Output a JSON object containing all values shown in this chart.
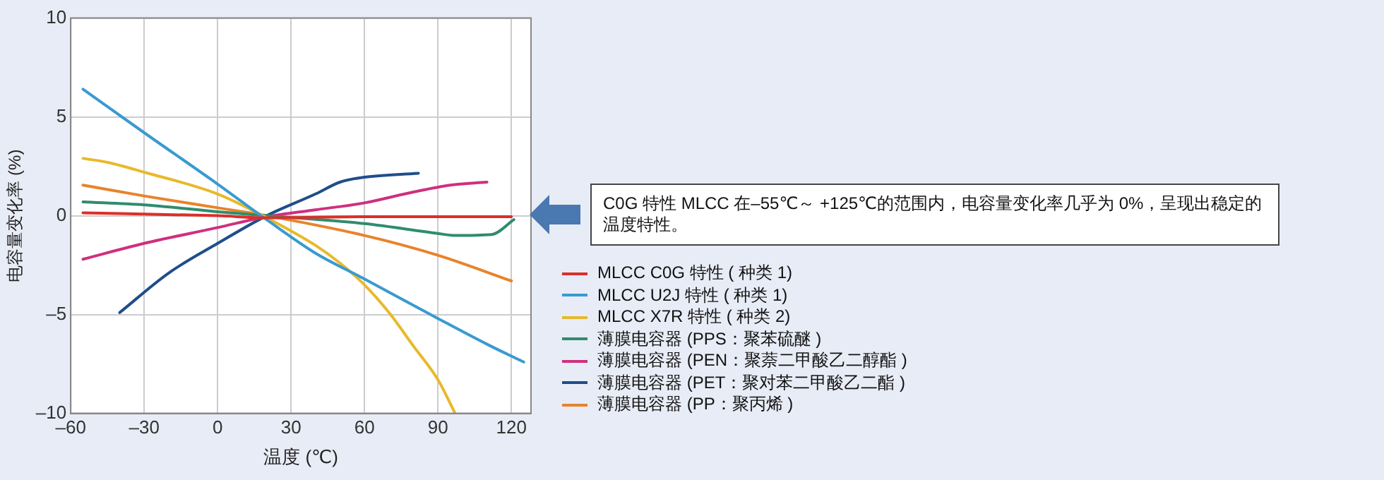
{
  "chart_data": {
    "type": "line",
    "xlabel": "温度 (℃)",
    "ylabel": "电容量变化率 (%)",
    "xlim": [
      -60,
      128
    ],
    "xticks": [
      {
        "value": -60,
        "label": "–60"
      },
      {
        "value": -30,
        "label": "–30"
      },
      0,
      30,
      60,
      90,
      120
    ],
    "ylim": [
      -10,
      10
    ],
    "yticks": [
      {
        "value": -10,
        "label": "–10"
      },
      {
        "value": -5,
        "label": "–5"
      },
      0,
      5,
      10
    ],
    "grid": true,
    "legend": "right",
    "marker": "none",
    "line_style": "solid",
    "annotations": [
      "C0G 特性 MLCC 在–55℃～ +125℃的范围内，电容量变化率几乎为 0%，呈现出稳定的温度特性。"
    ],
    "series": [
      {
        "name": "MLCC C0G 特性 ( 种类 1)",
        "color": "#d9302a",
        "x": [
          -55,
          0,
          20,
          60,
          120
        ],
        "values": [
          0.15,
          0,
          -0.1,
          -0.05,
          -0.05
        ]
      },
      {
        "name": "MLCC U2J 特性 ( 种类 1)",
        "color": "#3a9ad0",
        "x": [
          -55,
          -30,
          0,
          20,
          40,
          60,
          90,
          110,
          125
        ],
        "values": [
          6.4,
          4.2,
          1.6,
          -0.2,
          -1.9,
          -3.2,
          -5.2,
          -6.5,
          -7.4
        ]
      },
      {
        "name": "MLCC X7R 特性 ( 种类 2)",
        "color": "#e8b92a",
        "x": [
          -55,
          -45,
          -30,
          0,
          20,
          40,
          50,
          60,
          70,
          80,
          90,
          97
        ],
        "values": [
          2.9,
          2.7,
          2.2,
          1.1,
          -0.1,
          -1.5,
          -2.4,
          -3.5,
          -4.9,
          -6.6,
          -8.3,
          -10
        ]
      },
      {
        "name": "薄膜电容器 (PPS：聚苯硫醚 )",
        "color": "#2f8c6e",
        "x": [
          -55,
          -30,
          0,
          20,
          60,
          90,
          97,
          112,
          121
        ],
        "values": [
          0.7,
          0.55,
          0.2,
          0,
          -0.4,
          -0.9,
          -1.0,
          -0.95,
          -0.2
        ]
      },
      {
        "name": "薄膜电容器 (PEN：聚萘二甲酸乙二醇酯 )",
        "color": "#cf2f7f",
        "x": [
          -55,
          -30,
          0,
          20,
          40,
          60,
          80,
          95,
          110
        ],
        "values": [
          -2.2,
          -1.4,
          -0.6,
          -0.05,
          0.3,
          0.65,
          1.2,
          1.55,
          1.7
        ]
      },
      {
        "name": "薄膜电容器 (PET：聚对苯二甲酸乙二酯 )",
        "color": "#1f4e8a",
        "x": [
          -40,
          -20,
          0,
          20,
          40,
          50,
          60,
          82
        ],
        "values": [
          -4.9,
          -2.9,
          -1.4,
          0,
          1.1,
          1.7,
          1.95,
          2.15
        ]
      },
      {
        "name": "薄膜电容器 (PP：聚丙烯 )",
        "color": "#e8832a",
        "x": [
          -55,
          -30,
          0,
          20,
          60,
          90,
          120
        ],
        "values": [
          1.55,
          1.0,
          0.4,
          0,
          -1.0,
          -2.0,
          -3.3
        ]
      }
    ]
  }
}
